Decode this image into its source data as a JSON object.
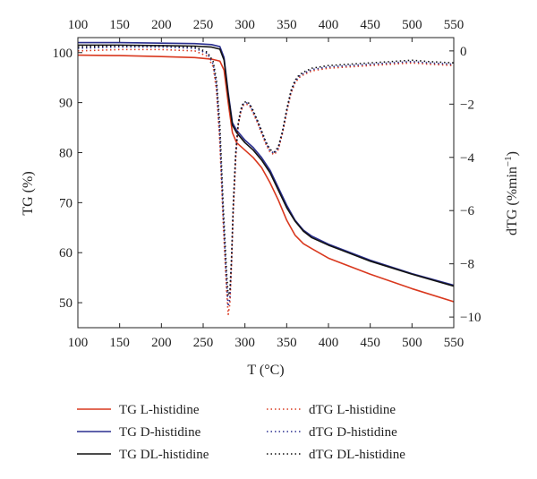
{
  "chart_data": {
    "type": "line",
    "title": "",
    "xlabel": "T (°C)",
    "ylabel_left": "TG (%)",
    "ylabel_right_prefix": "dTG (%min",
    "ylabel_right_sup": "−1",
    "ylabel_right_suffix": ")",
    "xlim": [
      100,
      550
    ],
    "ylim_left": [
      45,
      103
    ],
    "ylim_right": [
      -10.4,
      0.5
    ],
    "x_ticks": [
      100,
      150,
      200,
      250,
      300,
      350,
      400,
      450,
      500,
      550
    ],
    "x_tick_labels": [
      "100",
      "150",
      "200",
      "250",
      "300",
      "350",
      "400",
      "450",
      "500",
      "550"
    ],
    "y_left_ticks": [
      50,
      60,
      70,
      80,
      90,
      100
    ],
    "y_left_tick_labels": [
      "50",
      "60",
      "70",
      "80",
      "90",
      "100"
    ],
    "y_right_ticks": [
      -10,
      -8,
      -6,
      -4,
      -2,
      0
    ],
    "y_right_tick_labels": [
      "−10",
      "−8",
      "−6",
      "−4",
      "−2",
      "0"
    ],
    "grid": false,
    "legend_position": "bottom",
    "series": [
      {
        "name": "TG L-histidine",
        "axis": "left",
        "color": "#d9381e",
        "dash": "solid",
        "x": [
          100,
          150,
          200,
          240,
          260,
          270,
          275,
          280,
          285,
          290,
          300,
          310,
          320,
          330,
          340,
          350,
          360,
          370,
          380,
          400,
          450,
          500,
          550
        ],
        "y": [
          99.5,
          99.4,
          99.2,
          99.0,
          98.7,
          98.3,
          96.5,
          90.0,
          84.0,
          82.0,
          80.5,
          79.0,
          77.0,
          74.0,
          70.5,
          66.5,
          63.5,
          61.8,
          60.8,
          58.9,
          55.7,
          52.8,
          50.2
        ]
      },
      {
        "name": "TG D-histidine",
        "axis": "left",
        "color": "#2a2f8f",
        "dash": "solid",
        "x": [
          100,
          150,
          200,
          240,
          260,
          270,
          275,
          280,
          285,
          290,
          300,
          310,
          320,
          330,
          340,
          350,
          360,
          370,
          380,
          400,
          450,
          500,
          550
        ],
        "y": [
          102.0,
          102.0,
          101.9,
          101.8,
          101.6,
          101.2,
          99.0,
          92.0,
          86.0,
          84.5,
          82.5,
          81.0,
          79.0,
          76.5,
          73.0,
          69.5,
          66.5,
          64.5,
          63.3,
          61.7,
          58.5,
          55.8,
          53.5
        ]
      },
      {
        "name": "TG DL-histidine",
        "axis": "left",
        "color": "#111111",
        "dash": "solid",
        "x": [
          100,
          150,
          200,
          240,
          260,
          270,
          275,
          280,
          285,
          290,
          300,
          310,
          320,
          330,
          340,
          350,
          360,
          370,
          380,
          400,
          450,
          500,
          550
        ],
        "y": [
          101.5,
          101.5,
          101.4,
          101.3,
          101.1,
          100.7,
          98.5,
          91.5,
          85.5,
          84.0,
          82.0,
          80.5,
          78.5,
          76.0,
          72.5,
          69.0,
          66.3,
          64.3,
          63.0,
          61.5,
          58.3,
          55.7,
          53.3
        ]
      },
      {
        "name": "dTG L-histidine",
        "axis": "right",
        "color": "#d9381e",
        "dash": "dotted",
        "x": [
          100,
          150,
          200,
          240,
          255,
          262,
          266,
          270,
          274,
          278,
          280,
          282,
          284,
          286,
          289,
          292,
          295,
          298,
          302,
          306,
          310,
          315,
          320,
          325,
          330,
          335,
          340,
          345,
          350,
          355,
          360,
          365,
          370,
          380,
          400,
          450,
          500,
          520,
          550
        ],
        "y": [
          0.0,
          0.05,
          0.05,
          0.0,
          -0.2,
          -0.6,
          -1.5,
          -3.5,
          -6.5,
          -9.0,
          -9.9,
          -9.5,
          -8.0,
          -6.0,
          -4.0,
          -2.8,
          -2.3,
          -2.05,
          -2.0,
          -2.1,
          -2.35,
          -2.7,
          -3.1,
          -3.5,
          -3.8,
          -3.9,
          -3.7,
          -3.1,
          -2.3,
          -1.6,
          -1.2,
          -1.0,
          -0.9,
          -0.75,
          -0.65,
          -0.55,
          -0.45,
          -0.5,
          -0.55
        ]
      },
      {
        "name": "dTG D-histidine",
        "axis": "right",
        "color": "#2a2f8f",
        "dash": "dotted",
        "x": [
          100,
          150,
          200,
          240,
          255,
          262,
          266,
          270,
          274,
          278,
          280,
          282,
          284,
          286,
          289,
          292,
          295,
          298,
          302,
          306,
          310,
          315,
          320,
          325,
          330,
          335,
          340,
          345,
          350,
          355,
          360,
          365,
          370,
          380,
          400,
          450,
          500,
          520,
          550
        ],
        "y": [
          0.1,
          0.15,
          0.15,
          0.1,
          -0.1,
          -0.5,
          -1.3,
          -3.2,
          -6.2,
          -8.7,
          -9.6,
          -9.3,
          -7.9,
          -5.9,
          -3.9,
          -2.75,
          -2.25,
          -2.0,
          -1.95,
          -2.05,
          -2.3,
          -2.65,
          -3.05,
          -3.45,
          -3.75,
          -3.85,
          -3.65,
          -3.05,
          -2.25,
          -1.55,
          -1.15,
          -0.95,
          -0.85,
          -0.7,
          -0.6,
          -0.5,
          -0.4,
          -0.45,
          -0.5
        ]
      },
      {
        "name": "dTG DL-histidine",
        "axis": "right",
        "color": "#111111",
        "dash": "dotted",
        "x": [
          100,
          150,
          200,
          240,
          255,
          262,
          266,
          270,
          274,
          278,
          280,
          282,
          284,
          286,
          289,
          292,
          295,
          298,
          302,
          306,
          310,
          315,
          320,
          325,
          330,
          335,
          340,
          345,
          350,
          355,
          360,
          365,
          370,
          380,
          400,
          450,
          500,
          520,
          550
        ],
        "y": [
          0.15,
          0.2,
          0.2,
          0.15,
          -0.05,
          -0.4,
          -1.1,
          -2.8,
          -5.8,
          -8.3,
          -9.2,
          -9.0,
          -7.7,
          -5.8,
          -3.8,
          -2.7,
          -2.2,
          -1.95,
          -1.9,
          -2.0,
          -2.25,
          -2.6,
          -3.0,
          -3.4,
          -3.7,
          -3.8,
          -3.6,
          -3.0,
          -2.2,
          -1.5,
          -1.1,
          -0.9,
          -0.8,
          -0.65,
          -0.55,
          -0.45,
          -0.35,
          -0.4,
          -0.45
        ]
      }
    ]
  }
}
